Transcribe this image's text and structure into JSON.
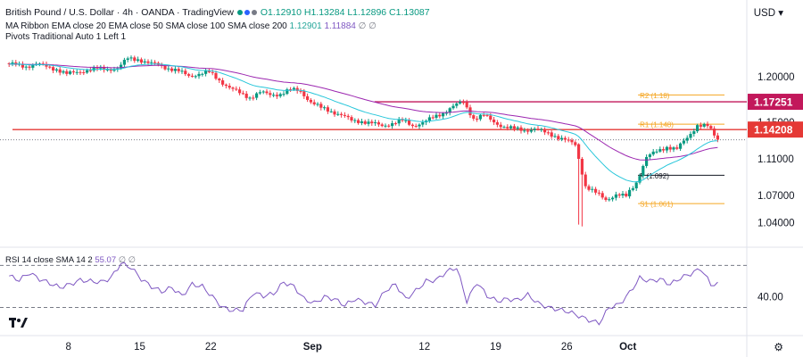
{
  "header": {
    "symbol": "British Pound / U.S. Dollar · 4h · OANDA · TradingView",
    "ohlc": "O1.12910 H1.13284 L1.12896 C1.13087",
    "ma_ribbon": "MA Ribbon EMA close 20 EMA close 50 SMA close 100 SMA close 200",
    "ma_values": [
      "1.12901",
      "1.11884",
      "∅",
      "∅"
    ],
    "pivots": "Pivots Traditional Auto 1 Left 1"
  },
  "currency_menu": "USD ▾",
  "colors": {
    "up": "#089981",
    "down": "#f23645",
    "ema20": "#26c6da",
    "ema50": "#9c27b0",
    "rsi": "#7e57c2",
    "red_line": "#e53935",
    "magenta_line": "#c2185b",
    "pivot_orange": "#f5a623",
    "pivot_dark": "#131722"
  },
  "chart_data": {
    "type": "candlestick",
    "title": "British Pound / U.S. Dollar",
    "interval": "4h",
    "source": "OANDA",
    "y_axis_ticks": [
      "1.20000",
      "1.15000",
      "1.11000",
      "1.07000",
      "1.04000"
    ],
    "y_axis_tick_values": [
      1.2,
      1.15,
      1.11,
      1.07,
      1.04
    ],
    "ylim": [
      1.022,
      1.24
    ],
    "x_axis_ticks": [
      "8",
      "15",
      "22",
      "Sep",
      "12",
      "19",
      "26",
      "Oct"
    ],
    "price_labels": [
      {
        "label": "1.17251",
        "value": 1.17251,
        "color": "#c2185b"
      },
      {
        "label": "1.14208",
        "value": 1.14208,
        "color": "#e53935"
      }
    ],
    "horizontal_levels": [
      {
        "label": "",
        "value": 1.17251,
        "color": "#c2185b",
        "x_start_day": 35.6
      },
      {
        "label": "",
        "value": 1.14208,
        "color": "#e53935",
        "x_start_day": 0
      }
    ],
    "pivots": [
      {
        "label": "R2 (1.18)",
        "value": 1.18
      },
      {
        "label": "R1 (1.148)",
        "value": 1.148
      },
      {
        "label": "P (1.092)",
        "value": 1.092
      },
      {
        "label": "S1 (1.061)",
        "value": 1.061
      }
    ],
    "last_price": 1.13087,
    "daily_closes": [
      {
        "d": 0,
        "c": 1.213
      },
      {
        "d": 1,
        "c": 1.211
      },
      {
        "d": 2,
        "c": 1.214
      },
      {
        "d": 3,
        "c": 1.211
      },
      {
        "d": 4,
        "c": 1.208
      },
      {
        "d": 5,
        "c": 1.203
      },
      {
        "d": 6,
        "c": 1.205
      },
      {
        "d": 7,
        "c": 1.207
      },
      {
        "d": 8,
        "c": 1.209
      },
      {
        "d": 9,
        "c": 1.208
      },
      {
        "d": 10,
        "c": 1.209
      },
      {
        "d": 11,
        "c": 1.22
      },
      {
        "d": 12,
        "c": 1.219
      },
      {
        "d": 13,
        "c": 1.215
      },
      {
        "d": 14,
        "c": 1.213
      },
      {
        "d": 15,
        "c": 1.209
      },
      {
        "d": 16,
        "c": 1.206
      },
      {
        "d": 17,
        "c": 1.201
      },
      {
        "d": 18,
        "c": 1.203
      },
      {
        "d": 19,
        "c": 1.205
      },
      {
        "d": 20,
        "c": 1.196
      },
      {
        "d": 21,
        "c": 1.188
      },
      {
        "d": 22,
        "c": 1.182
      },
      {
        "d": 23,
        "c": 1.177
      },
      {
        "d": 24,
        "c": 1.183
      },
      {
        "d": 25,
        "c": 1.18
      },
      {
        "d": 26,
        "c": 1.181
      },
      {
        "d": 27,
        "c": 1.186
      },
      {
        "d": 28,
        "c": 1.184
      },
      {
        "d": 29,
        "c": 1.172
      },
      {
        "d": 30,
        "c": 1.166
      },
      {
        "d": 31,
        "c": 1.162
      },
      {
        "d": 32,
        "c": 1.158
      },
      {
        "d": 33,
        "c": 1.152
      },
      {
        "d": 34,
        "c": 1.151
      },
      {
        "d": 35,
        "c": 1.149
      },
      {
        "d": 36,
        "c": 1.146
      },
      {
        "d": 37,
        "c": 1.149
      },
      {
        "d": 38,
        "c": 1.152
      },
      {
        "d": 39,
        "c": 1.146
      },
      {
        "d": 40,
        "c": 1.15
      },
      {
        "d": 41,
        "c": 1.155
      },
      {
        "d": 42,
        "c": 1.16
      },
      {
        "d": 43,
        "c": 1.168
      },
      {
        "d": 44,
        "c": 1.172
      },
      {
        "d": 45,
        "c": 1.154
      },
      {
        "d": 46,
        "c": 1.158
      },
      {
        "d": 47,
        "c": 1.15
      },
      {
        "d": 48,
        "c": 1.145
      },
      {
        "d": 49,
        "c": 1.143
      },
      {
        "d": 50,
        "c": 1.141
      },
      {
        "d": 51,
        "c": 1.143
      },
      {
        "d": 52,
        "c": 1.139
      },
      {
        "d": 53,
        "c": 1.135
      },
      {
        "d": 54,
        "c": 1.131
      },
      {
        "d": 55,
        "c": 1.125
      },
      {
        "d": 56,
        "c": 1.08
      },
      {
        "d": 57,
        "c": 1.073
      },
      {
        "d": 58,
        "c": 1.065
      },
      {
        "d": 59,
        "c": 1.071
      },
      {
        "d": 60,
        "c": 1.069
      },
      {
        "d": 61,
        "c": 1.084
      },
      {
        "d": 62,
        "c": 1.112
      },
      {
        "d": 63,
        "c": 1.118
      },
      {
        "d": 64,
        "c": 1.123
      },
      {
        "d": 65,
        "c": 1.121
      },
      {
        "d": 66,
        "c": 1.133
      },
      {
        "d": 67,
        "c": 1.147
      },
      {
        "d": 68,
        "c": 1.146
      },
      {
        "d": 69,
        "c": 1.131
      }
    ],
    "rsi": {
      "label": "RSI 14 close SMA 14 2",
      "value": "55.07",
      "tick": "40.00",
      "tick_value": 40,
      "band_upper": 70,
      "band_lower": 30,
      "ylim": [
        10,
        78
      ],
      "values": [
        60,
        56,
        63,
        57,
        53,
        49,
        52,
        56,
        55,
        54,
        58,
        72,
        68,
        57,
        50,
        45,
        49,
        41,
        52,
        50,
        40,
        30,
        27,
        28,
        44,
        41,
        43,
        54,
        50,
        38,
        34,
        40,
        38,
        32,
        38,
        35,
        32,
        46,
        52,
        38,
        46,
        55,
        56,
        64,
        68,
        36,
        54,
        41,
        36,
        38,
        37,
        42,
        34,
        30,
        28,
        26,
        22,
        18,
        15,
        30,
        33,
        44,
        58,
        55,
        57,
        52,
        58,
        62,
        67,
        52
      ]
    }
  }
}
